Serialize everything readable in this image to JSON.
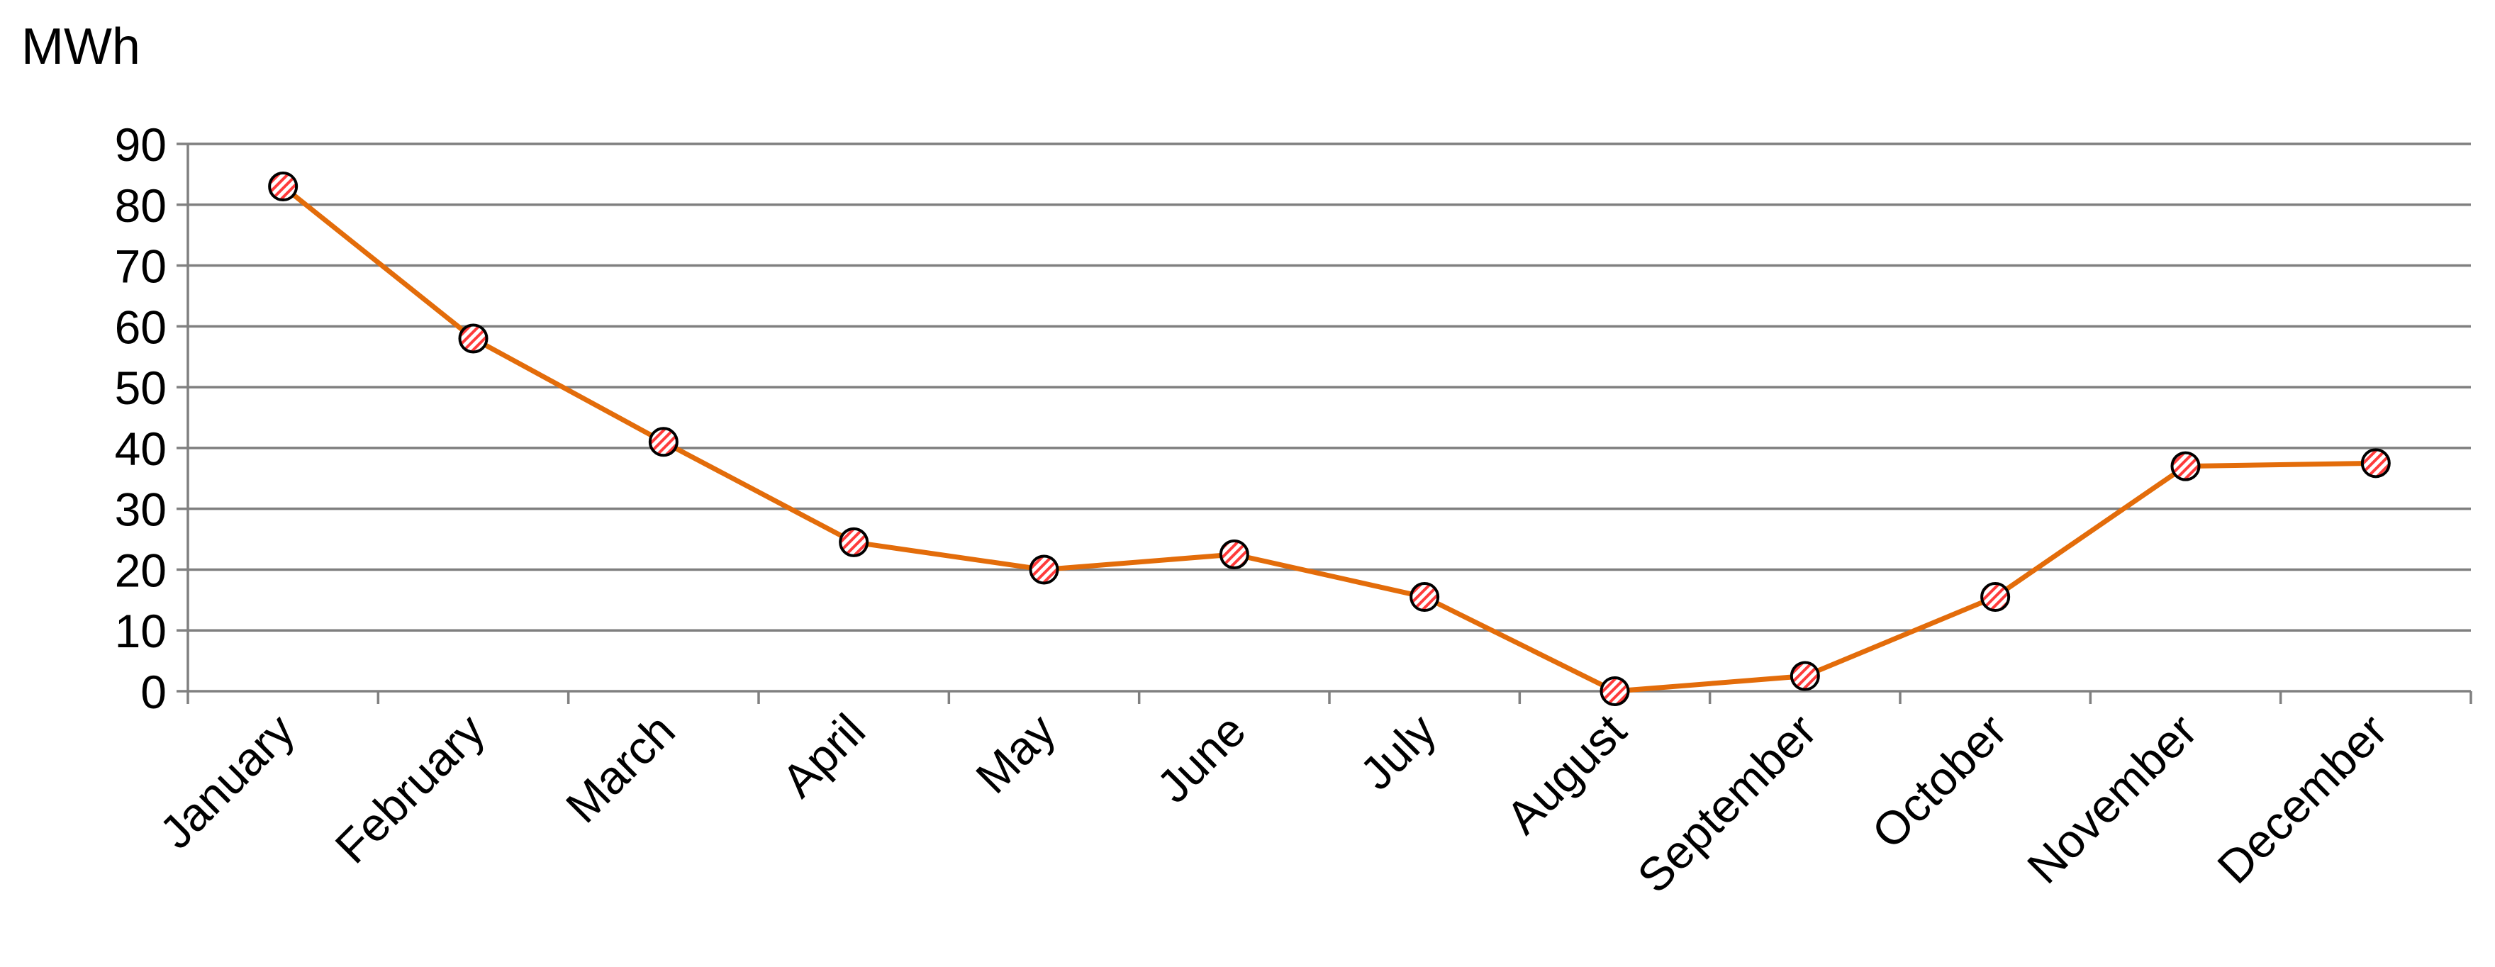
{
  "chart_data": {
    "type": "line",
    "title": "",
    "xlabel": "",
    "ylabel": "MWh",
    "categories": [
      "January",
      "February",
      "March",
      "April",
      "May",
      "June",
      "July",
      "August",
      "September",
      "October",
      "November",
      "December"
    ],
    "series": [
      {
        "values": [
          83,
          58,
          41,
          24.5,
          20,
          22.5,
          15.5,
          0,
          2.5,
          15.5,
          37,
          37.5
        ]
      }
    ],
    "ylim": [
      0,
      90
    ],
    "yticks": [
      0,
      10,
      20,
      30,
      40,
      50,
      60,
      70,
      80,
      90
    ],
    "grid": true,
    "legend": "none",
    "colors": {
      "line": "#e36c0a",
      "marker_fill": "#ffffff",
      "marker_hatch": "#ff3b3b",
      "marker_edge": "#000000",
      "gridline": "#7f7f7f",
      "axis": "#808080"
    }
  }
}
